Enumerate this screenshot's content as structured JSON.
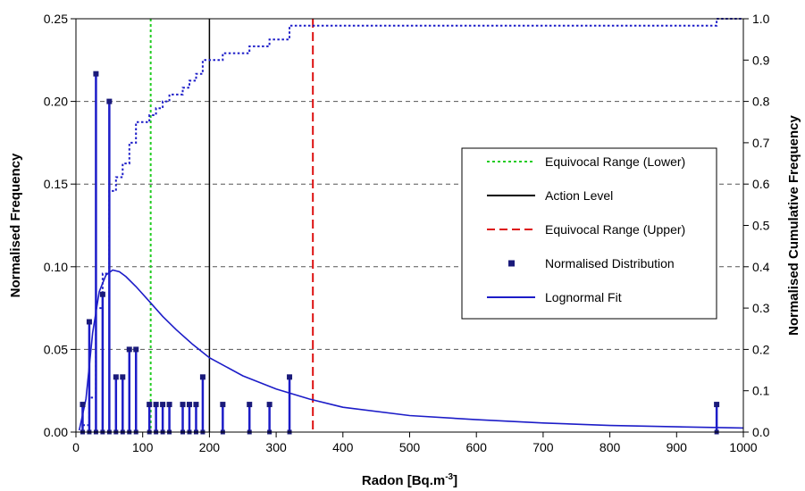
{
  "chart_data": {
    "type": "bar",
    "xlabel": "Radon [Bq.m",
    "xlabel_superscript": "-3",
    "xlabel_suffix": "]",
    "ylabel": "Normalised Frequency",
    "y2label": "Normalised Cumulative Frequency",
    "xlim": [
      0,
      1000
    ],
    "ylim": [
      0,
      0.25
    ],
    "y2lim": [
      0,
      1.0
    ],
    "x_ticks": [
      "0",
      "100",
      "200",
      "300",
      "400",
      "500",
      "600",
      "700",
      "800",
      "900",
      "1000"
    ],
    "y_ticks": [
      "0.00",
      "0.05",
      "0.10",
      "0.15",
      "0.20",
      "0.25"
    ],
    "y2_ticks": [
      "0.0",
      "0.1",
      "0.2",
      "0.3",
      "0.4",
      "0.5",
      "0.6",
      "0.7",
      "0.8",
      "0.9",
      "1.0"
    ],
    "grid": "horizontal dashed at y ticks",
    "legend_position": "right",
    "series": [
      {
        "name": "Normalised Distribution",
        "style": "stems with square markers",
        "color": "#1c1cc8",
        "marker_color": "#1a1a7a",
        "points": [
          [
            10,
            0.0167
          ],
          [
            20,
            0.0667
          ],
          [
            30,
            0.2167
          ],
          [
            40,
            0.0833
          ],
          [
            50,
            0.2
          ],
          [
            60,
            0.0333
          ],
          [
            70,
            0.0333
          ],
          [
            80,
            0.05
          ],
          [
            90,
            0.05
          ],
          [
            110,
            0.0167
          ],
          [
            120,
            0.0167
          ],
          [
            130,
            0.0167
          ],
          [
            140,
            0.0167
          ],
          [
            160,
            0.0167
          ],
          [
            170,
            0.0167
          ],
          [
            180,
            0.0167
          ],
          [
            190,
            0.0333
          ],
          [
            220,
            0.0167
          ],
          [
            260,
            0.0167
          ],
          [
            290,
            0.0167
          ],
          [
            320,
            0.0333
          ],
          [
            960,
            0.0167
          ]
        ]
      },
      {
        "name": "Lognormal Fit",
        "style": "solid line",
        "color": "#1c1cc8",
        "points": [
          [
            5,
            0.001
          ],
          [
            15,
            0.02
          ],
          [
            25,
            0.06
          ],
          [
            35,
            0.085
          ],
          [
            45,
            0.095
          ],
          [
            55,
            0.098
          ],
          [
            65,
            0.097
          ],
          [
            75,
            0.094
          ],
          [
            90,
            0.088
          ],
          [
            110,
            0.079
          ],
          [
            130,
            0.07
          ],
          [
            150,
            0.062
          ],
          [
            175,
            0.053
          ],
          [
            200,
            0.045
          ],
          [
            250,
            0.034
          ],
          [
            300,
            0.026
          ],
          [
            350,
            0.02
          ],
          [
            400,
            0.015
          ],
          [
            500,
            0.01
          ],
          [
            600,
            0.0075
          ],
          [
            700,
            0.0055
          ],
          [
            800,
            0.004
          ],
          [
            900,
            0.0032
          ],
          [
            1000,
            0.0025
          ]
        ]
      },
      {
        "name": "Cumulative",
        "style": "dotted step line on secondary axis",
        "color": "#1c1cc8",
        "points": [
          [
            10,
            0.0167
          ],
          [
            20,
            0.0833
          ],
          [
            30,
            0.3
          ],
          [
            40,
            0.3833
          ],
          [
            50,
            0.5833
          ],
          [
            60,
            0.6167
          ],
          [
            70,
            0.65
          ],
          [
            80,
            0.7
          ],
          [
            90,
            0.75
          ],
          [
            110,
            0.7667
          ],
          [
            120,
            0.7833
          ],
          [
            130,
            0.8
          ],
          [
            140,
            0.8167
          ],
          [
            160,
            0.8333
          ],
          [
            170,
            0.85
          ],
          [
            180,
            0.8667
          ],
          [
            190,
            0.9
          ],
          [
            220,
            0.9167
          ],
          [
            260,
            0.9333
          ],
          [
            290,
            0.95
          ],
          [
            320,
            0.9833
          ],
          [
            960,
            1.0
          ],
          [
            1000,
            1.0
          ]
        ]
      }
    ],
    "reference_lines": [
      {
        "name": "Equivocal Range (Lower)",
        "x": 112,
        "color": "#22cc22",
        "style": "dotted"
      },
      {
        "name": "Action Level",
        "x": 200,
        "color": "#000000",
        "style": "solid"
      },
      {
        "name": "Equivocal Range (Upper)",
        "x": 355,
        "color": "#dd1111",
        "style": "dashed"
      }
    ],
    "legend": [
      {
        "label": "Equivocal Range (Lower)",
        "kind": "line",
        "color": "#22cc22",
        "dash": "3,3"
      },
      {
        "label": "Action Level",
        "kind": "line",
        "color": "#000000",
        "dash": ""
      },
      {
        "label": "Equivocal Range (Upper)",
        "kind": "line",
        "color": "#dd1111",
        "dash": "9,5"
      },
      {
        "label": "Normalised Distribution",
        "kind": "marker",
        "color": "#1a1a7a",
        "dash": ""
      },
      {
        "label": "Lognormal Fit",
        "kind": "line",
        "color": "#1c1cc8",
        "dash": ""
      }
    ]
  }
}
